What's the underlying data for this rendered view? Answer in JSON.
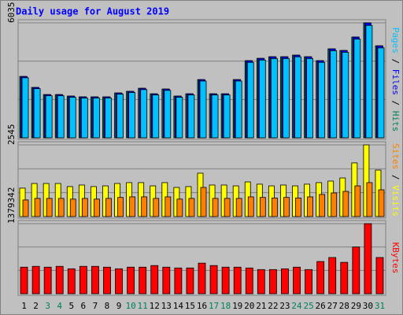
{
  "title": "Daily usage for August 2019",
  "legend_separator": " / ",
  "chart_data": [
    {
      "type": "bar",
      "ylim": [
        0,
        6035
      ],
      "yticks": [
        6035
      ],
      "grid": true,
      "series": [
        {
          "name": "Hits",
          "color": "#00805c",
          "values": [
            3220,
            2645,
            2270,
            2270,
            2190,
            2150,
            2150,
            2150,
            2355,
            2440,
            2600,
            2310,
            2560,
            2190,
            2310,
            3055,
            2310,
            2310,
            3055,
            4050,
            4170,
            4255,
            4255,
            4340,
            4255,
            4050,
            4670,
            4585,
            5290,
            6035,
            4830
          ]
        },
        {
          "name": "Files",
          "color": "#0000ff",
          "values": [
            3220,
            2645,
            2270,
            2270,
            2190,
            2150,
            2150,
            2150,
            2355,
            2440,
            2600,
            2310,
            2560,
            2190,
            2310,
            3055,
            2310,
            2310,
            3055,
            4050,
            4170,
            4255,
            4255,
            4340,
            4255,
            4050,
            4670,
            4585,
            5290,
            6035,
            4830
          ]
        },
        {
          "name": "Pages",
          "color": "#00c0ff",
          "values": [
            3150,
            2580,
            2210,
            2210,
            2130,
            2090,
            2090,
            2090,
            2290,
            2380,
            2530,
            2250,
            2490,
            2130,
            2250,
            2980,
            2250,
            2250,
            2980,
            3960,
            4080,
            4160,
            4160,
            4250,
            4160,
            3960,
            4570,
            4490,
            5180,
            5900,
            4720
          ]
        }
      ]
    },
    {
      "type": "bar",
      "ylim": [
        0,
        2545
      ],
      "yticks": [
        2545
      ],
      "grid": true,
      "series": [
        {
          "name": "Visits",
          "color": "#ffff00",
          "values": [
            1010,
            1175,
            1175,
            1175,
            1065,
            1120,
            1065,
            1090,
            1175,
            1205,
            1205,
            1090,
            1205,
            1035,
            1065,
            1540,
            1120,
            1120,
            1090,
            1230,
            1150,
            1090,
            1120,
            1090,
            1150,
            1205,
            1260,
            1370,
            1905,
            2545,
            1650
          ]
        },
        {
          "name": "Sites",
          "color": "#ff8000",
          "values": [
            590,
            645,
            645,
            645,
            620,
            645,
            620,
            645,
            680,
            700,
            700,
            645,
            700,
            620,
            645,
            1035,
            645,
            645,
            645,
            700,
            680,
            660,
            680,
            660,
            700,
            785,
            840,
            895,
            1090,
            1205,
            950
          ]
        }
      ]
    },
    {
      "type": "bar",
      "ylim": [
        0,
        1379342
      ],
      "yticks": [
        1379342
      ],
      "grid": true,
      "categories": [
        "1",
        "2",
        "3",
        "4",
        "5",
        "6",
        "7",
        "8",
        "9",
        "10",
        "11",
        "12",
        "13",
        "14",
        "15",
        "16",
        "17",
        "18",
        "19",
        "20",
        "21",
        "22",
        "23",
        "24",
        "25",
        "26",
        "27",
        "28",
        "29",
        "30",
        "31"
      ],
      "category_colors": [
        "#000000",
        "#000000",
        "#00805c",
        "#00805c",
        "#000000",
        "#000000",
        "#000000",
        "#000000",
        "#000000",
        "#00805c",
        "#00805c",
        "#000000",
        "#000000",
        "#000000",
        "#000000",
        "#000000",
        "#00805c",
        "#00805c",
        "#000000",
        "#000000",
        "#000000",
        "#000000",
        "#000000",
        "#00805c",
        "#00805c",
        "#000000",
        "#000000",
        "#000000",
        "#000000",
        "#000000",
        "#00805c"
      ],
      "series": [
        {
          "name": "KBytes",
          "color": "#ff0000",
          "values": [
            523000,
            539000,
            523000,
            539000,
            491000,
            539000,
            539000,
            523000,
            491000,
            523000,
            523000,
            555000,
            523000,
            507000,
            507000,
            602000,
            555000,
            523000,
            523000,
            507000,
            476000,
            476000,
            491000,
            523000,
            476000,
            634000,
            713000,
            618000,
            920000,
            1379342,
            713000
          ]
        }
      ]
    }
  ]
}
